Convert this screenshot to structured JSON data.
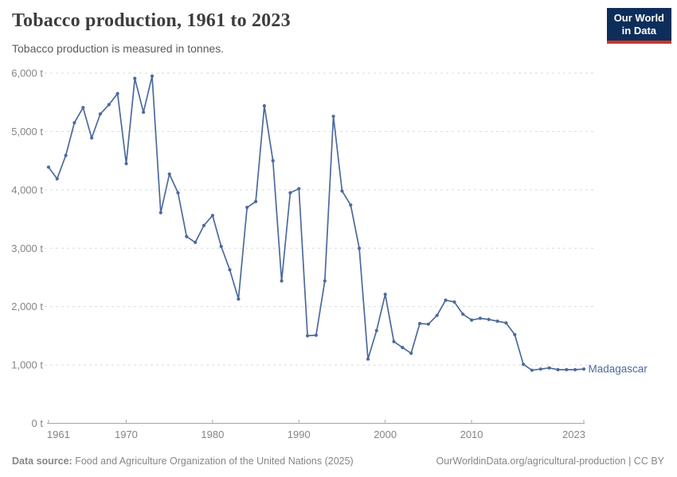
{
  "header": {
    "logo": {
      "line1": "Our World",
      "line2": "in Data"
    }
  },
  "chart_data": {
    "type": "line",
    "title": "Tobacco production, 1961 to 2023",
    "subtitle": "Tobacco production is measured in tonnes.",
    "xlabel": "",
    "ylabel": "",
    "unit": "t",
    "xlim": [
      1961,
      2023
    ],
    "ylim": [
      0,
      6000
    ],
    "grid": "horizontal-dashed",
    "legend_position": "end-of-line-label",
    "x_ticks": [
      {
        "year": 1961,
        "label": "1961"
      },
      {
        "year": 1970,
        "label": "1970"
      },
      {
        "year": 1980,
        "label": "1980"
      },
      {
        "year": 1990,
        "label": "1990"
      },
      {
        "year": 2000,
        "label": "2000"
      },
      {
        "year": 2010,
        "label": "2010"
      },
      {
        "year": 2023,
        "label": "2023"
      }
    ],
    "y_ticks": [
      {
        "value": 0,
        "label": "0 t"
      },
      {
        "value": 1000,
        "label": "1,000 t"
      },
      {
        "value": 2000,
        "label": "2,000 t"
      },
      {
        "value": 3000,
        "label": "3,000 t"
      },
      {
        "value": 4000,
        "label": "4,000 t"
      },
      {
        "value": 5000,
        "label": "5,000 t"
      },
      {
        "value": 6000,
        "label": "6,000 t"
      }
    ],
    "series": [
      {
        "name": "Madagascar",
        "color": "#4c6a9c",
        "years": [
          1961,
          1962,
          1963,
          1964,
          1965,
          1966,
          1967,
          1968,
          1969,
          1970,
          1971,
          1972,
          1973,
          1974,
          1975,
          1976,
          1977,
          1978,
          1979,
          1980,
          1981,
          1982,
          1983,
          1984,
          1985,
          1986,
          1987,
          1988,
          1989,
          1990,
          1991,
          1992,
          1993,
          1994,
          1995,
          1996,
          1997,
          1998,
          1999,
          2000,
          2001,
          2002,
          2003,
          2004,
          2005,
          2006,
          2007,
          2008,
          2009,
          2010,
          2011,
          2012,
          2013,
          2014,
          2015,
          2016,
          2017,
          2018,
          2019,
          2020,
          2021,
          2022,
          2023
        ],
        "values": [
          4390,
          4190,
          4590,
          5150,
          5410,
          4890,
          5300,
          5460,
          5650,
          4450,
          5910,
          5330,
          5950,
          3610,
          4270,
          3950,
          3200,
          3100,
          3390,
          3560,
          3030,
          2630,
          2130,
          3700,
          3800,
          5440,
          4500,
          2440,
          3950,
          4020,
          1500,
          1510,
          2440,
          5260,
          3980,
          3740,
          3000,
          1100,
          1590,
          2210,
          1400,
          1300,
          1200,
          1710,
          1700,
          1850,
          2110,
          2080,
          1870,
          1770,
          1800,
          1780,
          1750,
          1720,
          1520,
          1010,
          910,
          930,
          950,
          920,
          920,
          920,
          930
        ]
      }
    ]
  },
  "footer": {
    "datasource_label": "Data source:",
    "datasource": " Food and Agriculture Organization of the United Nations (2025)",
    "credit": "OurWorldinData.org/agricultural-production | CC BY"
  },
  "colors": {
    "accent": "#4c6a9c",
    "logo_bg": "#0d2e5a",
    "logo_red": "#c9372b",
    "grid": "#dadada",
    "axis": "#a6a6a6",
    "tick_text": "#858585"
  }
}
